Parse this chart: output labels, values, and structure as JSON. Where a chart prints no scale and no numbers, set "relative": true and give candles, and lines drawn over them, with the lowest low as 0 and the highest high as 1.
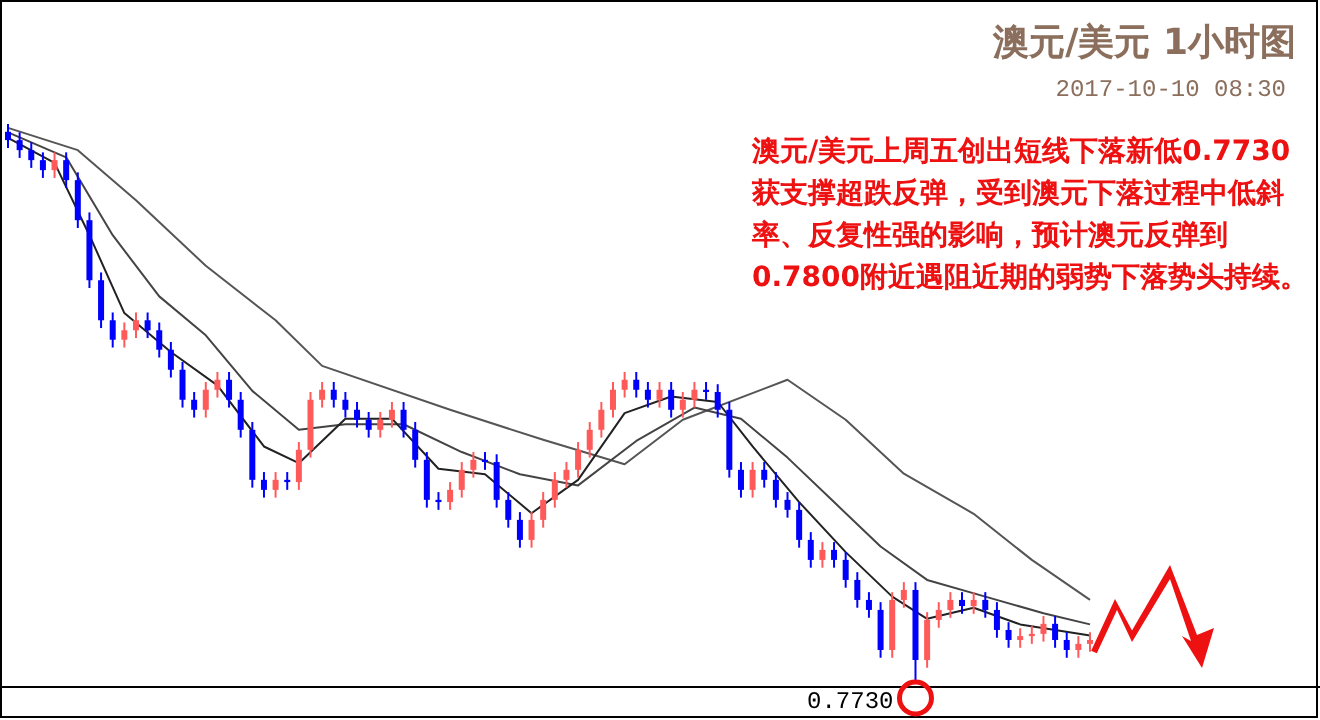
{
  "chart_data": {
    "type": "candlestick",
    "relative": true,
    "title": "澳元/美元 1小时图",
    "subtitle": "2017-10-10 08:30",
    "annotations": [
      "澳元/美元上周五创出短线下落新低0.7730获支撑超跌反弹，受到澳元下落过程中低斜率、反复性强的影响，预计澳元反弹到0.7800附近遇阻近期的弱势下落势头持续。",
      "0.7730"
    ],
    "categories": [
      null,
      null,
      null,
      null,
      null,
      null,
      null,
      null,
      null,
      null,
      null,
      null,
      null,
      null,
      null,
      null,
      null,
      null,
      null,
      null,
      null,
      null,
      null,
      null,
      null,
      null,
      null,
      null,
      null,
      null,
      null,
      null,
      null,
      null,
      null,
      null,
      null,
      null,
      null,
      null,
      null,
      null,
      null,
      null,
      null,
      null,
      null,
      null,
      null,
      null,
      null,
      null,
      null,
      null,
      null,
      null,
      null,
      null,
      null,
      null,
      null,
      null,
      null,
      null,
      null,
      null,
      null,
      null,
      null,
      null,
      null,
      null,
      null,
      null,
      null,
      null,
      null,
      null,
      null,
      null,
      null,
      null,
      null,
      null,
      null,
      null,
      null,
      null,
      null,
      null,
      null,
      null,
      null,
      null
    ],
    "ohlc": [
      [
        0.986,
        1.0,
        0.957,
        0.971
      ],
      [
        0.971,
        0.985,
        0.939,
        0.953
      ],
      [
        0.953,
        0.967,
        0.921,
        0.935
      ],
      [
        0.935,
        0.949,
        0.903,
        0.917
      ],
      [
        0.917,
        0.949,
        0.903,
        0.935
      ],
      [
        0.935,
        0.949,
        0.885,
        0.899
      ],
      [
        0.899,
        0.913,
        0.813,
        0.827
      ],
      [
        0.827,
        0.841,
        0.705,
        0.719
      ],
      [
        0.719,
        0.733,
        0.633,
        0.647
      ],
      [
        0.647,
        0.661,
        0.598,
        0.612
      ],
      [
        0.612,
        0.643,
        0.598,
        0.629
      ],
      [
        0.629,
        0.661,
        0.615,
        0.647
      ],
      [
        0.647,
        0.661,
        0.615,
        0.629
      ],
      [
        0.629,
        0.643,
        0.58,
        0.594
      ],
      [
        0.594,
        0.608,
        0.544,
        0.558
      ],
      [
        0.558,
        0.572,
        0.49,
        0.504
      ],
      [
        0.504,
        0.518,
        0.472,
        0.486
      ],
      [
        0.486,
        0.536,
        0.472,
        0.522
      ],
      [
        0.522,
        0.554,
        0.508,
        0.54
      ],
      [
        0.54,
        0.554,
        0.49,
        0.504
      ],
      [
        0.504,
        0.518,
        0.436,
        0.45
      ],
      [
        0.45,
        0.464,
        0.346,
        0.36
      ],
      [
        0.36,
        0.374,
        0.328,
        0.342
      ],
      [
        0.342,
        0.374,
        0.328,
        0.36
      ],
      [
        0.36,
        0.374,
        0.342,
        0.356
      ],
      [
        0.356,
        0.428,
        0.342,
        0.414
      ],
      [
        0.414,
        0.518,
        0.4,
        0.504
      ],
      [
        0.504,
        0.536,
        0.49,
        0.522
      ],
      [
        0.522,
        0.536,
        0.49,
        0.504
      ],
      [
        0.504,
        0.518,
        0.472,
        0.486
      ],
      [
        0.486,
        0.5,
        0.454,
        0.468
      ],
      [
        0.468,
        0.482,
        0.436,
        0.45
      ],
      [
        0.45,
        0.482,
        0.436,
        0.468
      ],
      [
        0.468,
        0.5,
        0.454,
        0.486
      ],
      [
        0.486,
        0.5,
        0.436,
        0.45
      ],
      [
        0.45,
        0.464,
        0.382,
        0.396
      ],
      [
        0.396,
        0.41,
        0.31,
        0.324
      ],
      [
        0.324,
        0.338,
        0.306,
        0.32
      ],
      [
        0.32,
        0.356,
        0.306,
        0.342
      ],
      [
        0.342,
        0.392,
        0.328,
        0.378
      ],
      [
        0.378,
        0.41,
        0.364,
        0.396
      ],
      [
        0.396,
        0.41,
        0.378,
        0.392
      ],
      [
        0.392,
        0.406,
        0.31,
        0.324
      ],
      [
        0.324,
        0.338,
        0.274,
        0.288
      ],
      [
        0.288,
        0.302,
        0.238,
        0.252
      ],
      [
        0.252,
        0.302,
        0.238,
        0.288
      ],
      [
        0.288,
        0.338,
        0.274,
        0.324
      ],
      [
        0.324,
        0.374,
        0.31,
        0.36
      ],
      [
        0.36,
        0.392,
        0.346,
        0.378
      ],
      [
        0.378,
        0.428,
        0.364,
        0.414
      ],
      [
        0.414,
        0.464,
        0.4,
        0.45
      ],
      [
        0.45,
        0.5,
        0.436,
        0.486
      ],
      [
        0.486,
        0.536,
        0.472,
        0.522
      ],
      [
        0.522,
        0.554,
        0.508,
        0.54
      ],
      [
        0.54,
        0.554,
        0.508,
        0.522
      ],
      [
        0.522,
        0.536,
        0.49,
        0.504
      ],
      [
        0.504,
        0.536,
        0.49,
        0.522
      ],
      [
        0.522,
        0.536,
        0.472,
        0.486
      ],
      [
        0.486,
        0.518,
        0.472,
        0.504
      ],
      [
        0.504,
        0.536,
        0.49,
        0.522
      ],
      [
        0.522,
        0.536,
        0.504,
        0.518
      ],
      [
        0.518,
        0.532,
        0.472,
        0.486
      ],
      [
        0.486,
        0.5,
        0.364,
        0.378
      ],
      [
        0.378,
        0.392,
        0.328,
        0.342
      ],
      [
        0.342,
        0.392,
        0.328,
        0.378
      ],
      [
        0.378,
        0.392,
        0.346,
        0.36
      ],
      [
        0.36,
        0.374,
        0.31,
        0.324
      ],
      [
        0.324,
        0.338,
        0.292,
        0.306
      ],
      [
        0.306,
        0.32,
        0.238,
        0.252
      ],
      [
        0.252,
        0.266,
        0.202,
        0.216
      ],
      [
        0.216,
        0.248,
        0.202,
        0.234
      ],
      [
        0.234,
        0.248,
        0.202,
        0.216
      ],
      [
        0.216,
        0.23,
        0.166,
        0.18
      ],
      [
        0.18,
        0.194,
        0.13,
        0.144
      ],
      [
        0.144,
        0.158,
        0.112,
        0.126
      ],
      [
        0.126,
        0.14,
        0.04,
        0.054
      ],
      [
        0.054,
        0.158,
        0.04,
        0.144
      ],
      [
        0.144,
        0.176,
        0.13,
        0.162
      ],
      [
        0.162,
        0.176,
        0.0,
        0.036
      ],
      [
        0.036,
        0.122,
        0.022,
        0.108
      ],
      [
        0.108,
        0.14,
        0.094,
        0.126
      ],
      [
        0.126,
        0.158,
        0.112,
        0.144
      ],
      [
        0.144,
        0.158,
        0.119,
        0.133
      ],
      [
        0.133,
        0.158,
        0.119,
        0.144
      ],
      [
        0.144,
        0.158,
        0.112,
        0.126
      ],
      [
        0.126,
        0.14,
        0.076,
        0.09
      ],
      [
        0.09,
        0.104,
        0.058,
        0.072
      ],
      [
        0.072,
        0.093,
        0.058,
        0.079
      ],
      [
        0.079,
        0.097,
        0.065,
        0.083
      ],
      [
        0.083,
        0.115,
        0.069,
        0.101
      ],
      [
        0.101,
        0.115,
        0.058,
        0.072
      ],
      [
        0.072,
        0.086,
        0.04,
        0.054
      ],
      [
        0.054,
        0.079,
        0.04,
        0.065
      ],
      [
        0.065,
        0.086,
        0.051,
        0.072
      ]
    ],
    "colors": [
      "#0000ff",
      "#0000ff",
      "#0000ff",
      "#0000ff",
      "#ff5a5a",
      "#0000ff",
      "#0000ff",
      "#0000ff",
      "#0000ff",
      "#0000ff",
      "#ff5a5a",
      "#ff5a5a",
      "#0000ff",
      "#0000ff",
      "#0000ff",
      "#0000ff",
      "#0000ff",
      "#ff5a5a",
      "#ff5a5a",
      "#0000ff",
      "#0000ff",
      "#0000ff",
      "#0000ff",
      "#ff5a5a",
      "#0000ff",
      "#ff5a5a",
      "#ff5a5a",
      "#ff5a5a",
      "#0000ff",
      "#0000ff",
      "#0000ff",
      "#0000ff",
      "#ff5a5a",
      "#ff5a5a",
      "#0000ff",
      "#0000ff",
      "#0000ff",
      "#0000ff",
      "#ff5a5a",
      "#ff5a5a",
      "#ff5a5a",
      "#0000ff",
      "#0000ff",
      "#0000ff",
      "#0000ff",
      "#ff5a5a",
      "#ff5a5a",
      "#ff5a5a",
      "#ff5a5a",
      "#ff5a5a",
      "#ff5a5a",
      "#ff5a5a",
      "#ff5a5a",
      "#ff5a5a",
      "#0000ff",
      "#0000ff",
      "#ff5a5a",
      "#0000ff",
      "#ff5a5a",
      "#ff5a5a",
      "#0000ff",
      "#0000ff",
      "#0000ff",
      "#0000ff",
      "#ff5a5a",
      "#0000ff",
      "#0000ff",
      "#0000ff",
      "#0000ff",
      "#0000ff",
      "#ff5a5a",
      "#0000ff",
      "#0000ff",
      "#0000ff",
      "#0000ff",
      "#0000ff",
      "#ff5a5a",
      "#ff5a5a",
      "#0000ff",
      "#ff5a5a",
      "#ff5a5a",
      "#ff5a5a",
      "#0000ff",
      "#ff5a5a",
      "#0000ff",
      "#0000ff",
      "#0000ff",
      "#ff5a5a",
      "#ff5a5a",
      "#ff5a5a",
      "#0000ff",
      "#0000ff",
      "#ff5a5a",
      "#ff5a5a"
    ],
    "series": [
      {
        "type": "line",
        "color": "#555555",
        "values": [
          0.993,
          null,
          null,
          null,
          null,
          null,
          0.953,
          null,
          null,
          null,
          null,
          0.863,
          null,
          null,
          null,
          null,
          null,
          0.745,
          null,
          null,
          null,
          null,
          null,
          0.647,
          null,
          null,
          null,
          0.565,
          null,
          null,
          null,
          null,
          null,
          null,
          null,
          null,
          null,
          null,
          0.486,
          null,
          null,
          null,
          null,
          null,
          null,
          null,
          0.432,
          null,
          null,
          null,
          null,
          null,
          null,
          0.388,
          null,
          null,
          null,
          null,
          0.468,
          null,
          null,
          null,
          null,
          null,
          null,
          null,
          null,
          0.54,
          null,
          null,
          null,
          null,
          0.468,
          null,
          null,
          null,
          null,
          0.371,
          null,
          null,
          null,
          null,
          null,
          0.299,
          null,
          null,
          null,
          null,
          0.216,
          null,
          null,
          null,
          null,
          0.144
        ]
      },
      {
        "type": "line",
        "color": "#444444",
        "values": [
          0.985,
          null,
          null,
          null,
          null,
          0.94,
          null,
          null,
          null,
          0.8,
          null,
          null,
          null,
          0.69,
          null,
          null,
          null,
          0.62,
          null,
          null,
          null,
          0.52,
          null,
          null,
          null,
          0.45,
          null,
          null,
          null,
          0.46,
          null,
          null,
          null,
          null,
          0.46,
          null,
          null,
          null,
          null,
          0.41,
          null,
          null,
          null,
          null,
          0.37,
          null,
          null,
          null,
          null,
          0.35,
          null,
          null,
          null,
          null,
          0.43,
          null,
          null,
          null,
          null,
          0.49,
          null,
          null,
          null,
          0.47,
          null,
          null,
          null,
          0.4,
          null,
          null,
          null,
          0.32,
          null,
          null,
          null,
          0.24,
          null,
          null,
          null,
          0.18,
          null,
          null,
          null,
          null,
          0.15,
          null,
          null,
          null,
          null,
          0.12,
          null,
          null,
          null,
          0.1
        ]
      },
      {
        "type": "line",
        "color": "#222222",
        "values": [
          0.975,
          null,
          null,
          null,
          0.93,
          null,
          null,
          0.8,
          null,
          null,
          0.66,
          null,
          null,
          null,
          0.59,
          null,
          null,
          null,
          0.53,
          null,
          null,
          null,
          0.42,
          null,
          null,
          0.39,
          null,
          null,
          null,
          0.47,
          null,
          null,
          null,
          0.47,
          null,
          null,
          null,
          0.38,
          null,
          null,
          null,
          0.37,
          null,
          null,
          null,
          0.3,
          null,
          null,
          null,
          0.36,
          null,
          null,
          null,
          0.48,
          null,
          null,
          null,
          0.51,
          null,
          null,
          null,
          0.5,
          null,
          null,
          0.42,
          null,
          null,
          null,
          0.32,
          null,
          null,
          null,
          0.23,
          null,
          null,
          null,
          0.15,
          null,
          null,
          0.11,
          null,
          null,
          null,
          0.13,
          null,
          null,
          null,
          0.1,
          null,
          null,
          null,
          null,
          null,
          0.08
        ]
      }
    ]
  }
}
